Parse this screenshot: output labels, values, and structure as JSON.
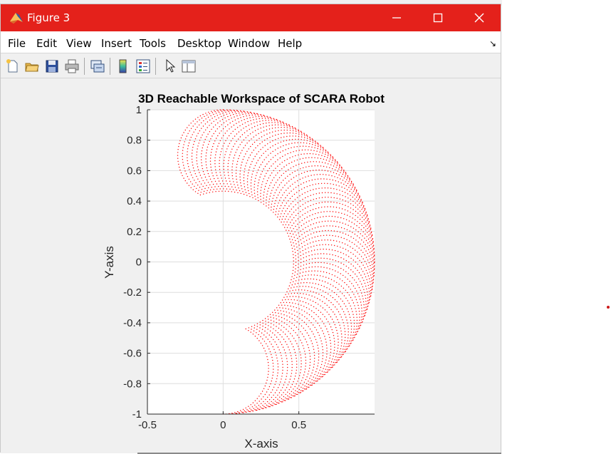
{
  "window": {
    "title": "Figure 3",
    "accent_color": "#e4211b",
    "controls": [
      "minimize-icon",
      "maximize-icon",
      "close-icon"
    ]
  },
  "menu": {
    "items": [
      "File",
      "Edit",
      "View",
      "Insert",
      "Tools",
      "Desktop",
      "Window",
      "Help"
    ],
    "dock_glyph": "↘"
  },
  "toolbar": {
    "icons": [
      "new-figure-icon",
      "open-file-icon",
      "save-icon",
      "print-icon",
      "link-plot-icon",
      "colorbar-icon",
      "legend-icon",
      "select-pointer-icon",
      "property-editor-icon"
    ]
  },
  "chart_data": {
    "type": "scatter",
    "title": "3D Reachable Workspace of SCARA Robot",
    "xlabel": "X-axis",
    "ylabel": "Y-axis",
    "xlim": [
      -0.5,
      1.0
    ],
    "ylim": [
      -1,
      1
    ],
    "xticks": [
      -0.5,
      0,
      0.5
    ],
    "xtick_labels": [
      "-0.5",
      "0",
      "0.5"
    ],
    "yticks": [
      -1,
      -0.8,
      -0.6,
      -0.4,
      -0.2,
      0,
      0.2,
      0.4,
      0.6,
      0.8,
      1
    ],
    "ytick_labels": [
      "-1",
      "-0.8",
      "-0.6",
      "-0.4",
      "-0.2",
      "0",
      "0.2",
      "0.4",
      "0.6",
      "0.8",
      "1"
    ],
    "grid": true,
    "marker_color": "#ff0000",
    "series": [
      {
        "link1_length": 0.7,
        "link2_length": 0.3,
        "theta1_range_deg": [
          -90,
          90
        ],
        "theta2_range_deg": [
          0,
          150
        ]
      }
    ]
  }
}
